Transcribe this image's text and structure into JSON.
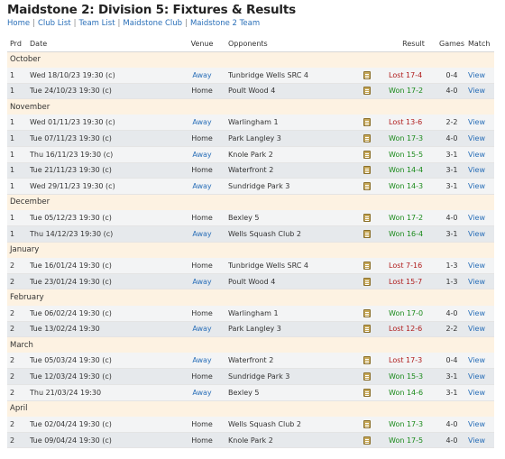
{
  "header": {
    "title": "Maidstone 2: Division 5: Fixtures & Results",
    "nav": [
      "Home",
      "Club List",
      "Team List",
      "Maidstone Club",
      "Maidstone 2 Team"
    ]
  },
  "columns": {
    "prd": "Prd",
    "date": "Date",
    "venue": "Venue",
    "opponents": "Opponents",
    "result": "Result",
    "games": "Games",
    "match": "Match"
  },
  "colors": {
    "lost": "#b01c1c",
    "won": "#1a8a1a",
    "link": "#2a6fb8",
    "month_bg": "#fdf2e2"
  },
  "icons": {
    "note": "scorecard-note-icon"
  },
  "months": [
    {
      "name": "October",
      "rows": [
        {
          "prd": "1",
          "date": "Wed 18/10/23 19:30 (c)",
          "venue": "Away",
          "opponents": "Tunbridge Wells SRC 4",
          "result": "Lost 17-4",
          "outcome": "lost",
          "games": "0-4",
          "match": "View"
        },
        {
          "prd": "1",
          "date": "Tue 24/10/23 19:30 (c)",
          "venue": "Home",
          "opponents": "Poult Wood 4",
          "result": "Won 17-2",
          "outcome": "won",
          "games": "4-0",
          "match": "View"
        }
      ]
    },
    {
      "name": "November",
      "rows": [
        {
          "prd": "1",
          "date": "Wed 01/11/23 19:30 (c)",
          "venue": "Away",
          "opponents": "Warlingham 1",
          "result": "Lost 13-6",
          "outcome": "lost",
          "games": "2-2",
          "match": "View"
        },
        {
          "prd": "1",
          "date": "Tue 07/11/23 19:30 (c)",
          "venue": "Home",
          "opponents": "Park Langley 3",
          "result": "Won 17-3",
          "outcome": "won",
          "games": "4-0",
          "match": "View"
        },
        {
          "prd": "1",
          "date": "Thu 16/11/23 19:30 (c)",
          "venue": "Away",
          "opponents": "Knole Park 2",
          "result": "Won 15-5",
          "outcome": "won",
          "games": "3-1",
          "match": "View"
        },
        {
          "prd": "1",
          "date": "Tue 21/11/23 19:30 (c)",
          "venue": "Home",
          "opponents": "Waterfront 2",
          "result": "Won 14-4",
          "outcome": "won",
          "games": "3-1",
          "match": "View"
        },
        {
          "prd": "1",
          "date": "Wed 29/11/23 19:30 (c)",
          "venue": "Away",
          "opponents": "Sundridge Park 3",
          "result": "Won 14-3",
          "outcome": "won",
          "games": "3-1",
          "match": "View"
        }
      ]
    },
    {
      "name": "December",
      "rows": [
        {
          "prd": "1",
          "date": "Tue 05/12/23 19:30 (c)",
          "venue": "Home",
          "opponents": "Bexley 5",
          "result": "Won 17-2",
          "outcome": "won",
          "games": "4-0",
          "match": "View"
        },
        {
          "prd": "1",
          "date": "Thu 14/12/23 19:30 (c)",
          "venue": "Away",
          "opponents": "Wells Squash Club 2",
          "result": "Won 16-4",
          "outcome": "won",
          "games": "3-1",
          "match": "View"
        }
      ]
    },
    {
      "name": "January",
      "rows": [
        {
          "prd": "2",
          "date": "Tue 16/01/24 19:30 (c)",
          "venue": "Home",
          "opponents": "Tunbridge Wells SRC 4",
          "result": "Lost 7-16",
          "outcome": "lost",
          "games": "1-3",
          "match": "View"
        },
        {
          "prd": "2",
          "date": "Tue 23/01/24 19:30 (c)",
          "venue": "Away",
          "opponents": "Poult Wood 4",
          "result": "Lost 15-7",
          "outcome": "lost",
          "games": "1-3",
          "match": "View"
        }
      ]
    },
    {
      "name": "February",
      "rows": [
        {
          "prd": "2",
          "date": "Tue 06/02/24 19:30 (c)",
          "venue": "Home",
          "opponents": "Warlingham 1",
          "result": "Won 17-0",
          "outcome": "won",
          "games": "4-0",
          "match": "View"
        },
        {
          "prd": "2",
          "date": "Tue 13/02/24 19:30",
          "venue": "Away",
          "opponents": "Park Langley 3",
          "result": "Lost 12-6",
          "outcome": "lost",
          "games": "2-2",
          "match": "View"
        }
      ]
    },
    {
      "name": "March",
      "rows": [
        {
          "prd": "2",
          "date": "Tue 05/03/24 19:30 (c)",
          "venue": "Away",
          "opponents": "Waterfront 2",
          "result": "Lost 17-3",
          "outcome": "lost",
          "games": "0-4",
          "match": "View"
        },
        {
          "prd": "2",
          "date": "Tue 12/03/24 19:30 (c)",
          "venue": "Home",
          "opponents": "Sundridge Park 3",
          "result": "Won 15-3",
          "outcome": "won",
          "games": "3-1",
          "match": "View"
        },
        {
          "prd": "2",
          "date": "Thu 21/03/24 19:30",
          "venue": "Away",
          "opponents": "Bexley 5",
          "result": "Won 14-6",
          "outcome": "won",
          "games": "3-1",
          "match": "View"
        }
      ]
    },
    {
      "name": "April",
      "rows": [
        {
          "prd": "2",
          "date": "Tue 02/04/24 19:30 (c)",
          "venue": "Home",
          "opponents": "Wells Squash Club 2",
          "result": "Won 17-3",
          "outcome": "won",
          "games": "4-0",
          "match": "View"
        },
        {
          "prd": "2",
          "date": "Tue 09/04/24 19:30 (c)",
          "venue": "Home",
          "opponents": "Knole Park 2",
          "result": "Won 17-5",
          "outcome": "won",
          "games": "4-0",
          "match": "View"
        }
      ]
    }
  ]
}
